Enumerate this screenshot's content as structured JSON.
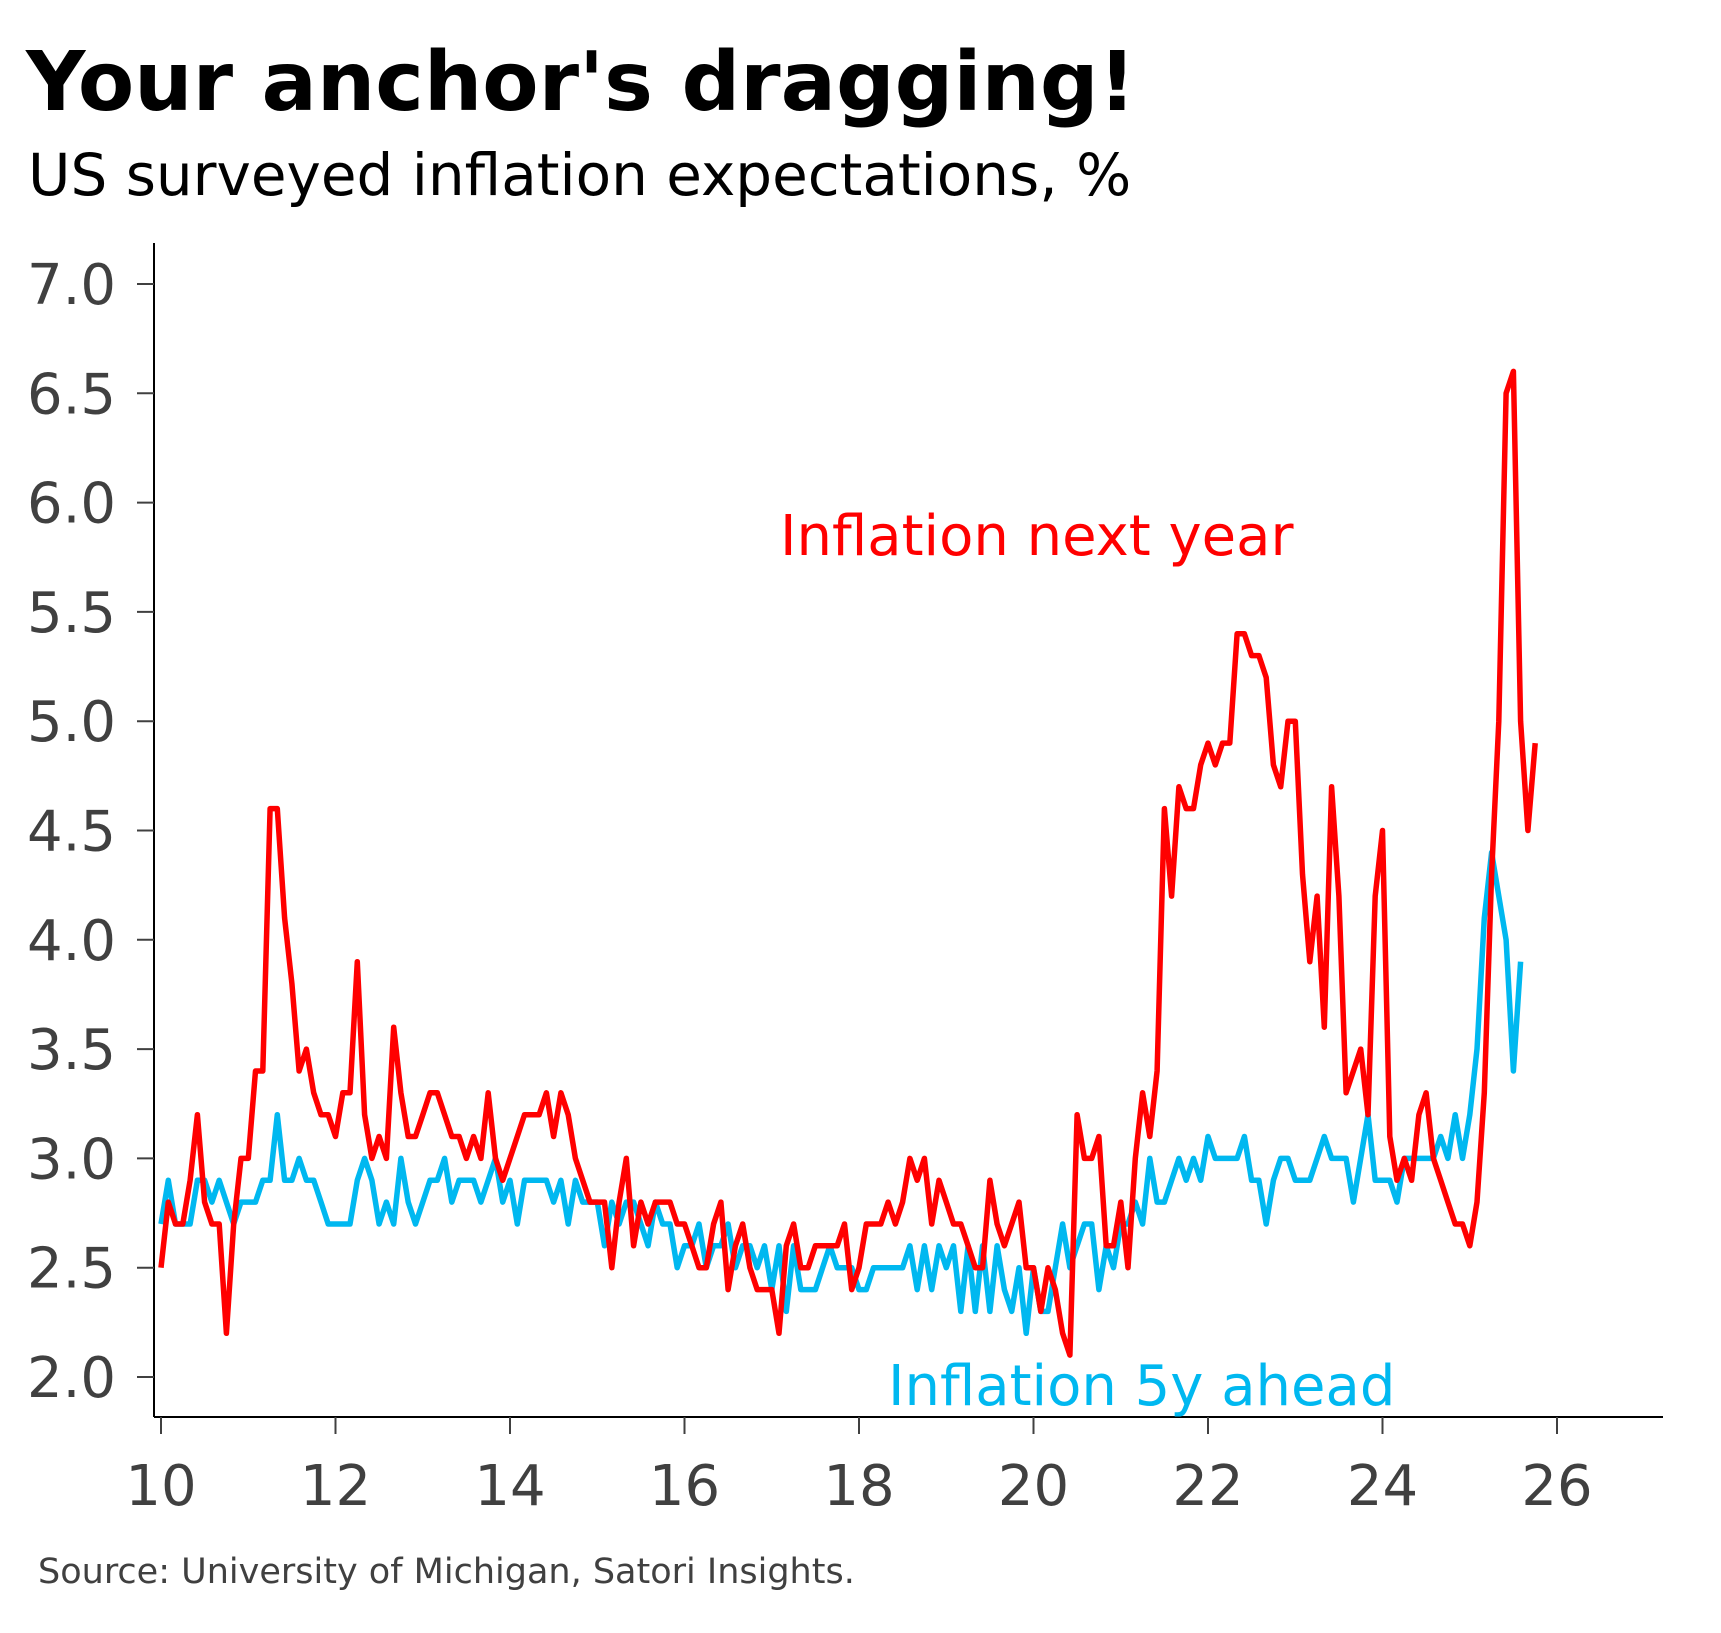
{
  "chart_data": {
    "type": "line",
    "title": "Your anchor's dragging!",
    "subtitle": "US surveyed inflation expectations, %",
    "source": "Source: University of Michigan, Satori Insights.",
    "xlabel": "",
    "ylabel": "",
    "x_start": 2010,
    "frequency": "monthly",
    "xlim": [
      2010,
      2027.2
    ],
    "ylim": [
      1.82,
      7.2
    ],
    "x_ticks": [
      10,
      12,
      14,
      16,
      18,
      20,
      22,
      24,
      26
    ],
    "x_tick_labels": [
      "10",
      "12",
      "14",
      "16",
      "18",
      "20",
      "22",
      "24",
      "26"
    ],
    "y_ticks": [
      2.0,
      2.5,
      3.0,
      3.5,
      4.0,
      4.5,
      5.0,
      5.5,
      6.0,
      6.5,
      7.0
    ],
    "y_tick_labels": [
      "2.0",
      "2.5",
      "3.0",
      "3.5",
      "4.0",
      "4.5",
      "5.0",
      "5.5",
      "6.0",
      "6.5",
      "7.0"
    ],
    "grid": false,
    "legend": "inline labels",
    "series": [
      {
        "name": "Inflation next year",
        "color": "#ff0000",
        "values": [
          2.5,
          2.8,
          2.7,
          2.7,
          2.9,
          3.2,
          2.8,
          2.7,
          2.7,
          2.2,
          2.7,
          3.0,
          3.0,
          3.4,
          3.4,
          4.6,
          4.6,
          4.1,
          3.8,
          3.4,
          3.5,
          3.3,
          3.2,
          3.2,
          3.1,
          3.3,
          3.3,
          3.9,
          3.2,
          3.0,
          3.1,
          3.0,
          3.6,
          3.3,
          3.1,
          3.1,
          3.2,
          3.3,
          3.3,
          3.2,
          3.1,
          3.1,
          3.0,
          3.1,
          3.0,
          3.3,
          3.0,
          2.9,
          3.0,
          3.1,
          3.2,
          3.2,
          3.2,
          3.3,
          3.1,
          3.3,
          3.2,
          3.0,
          2.9,
          2.8,
          2.8,
          2.8,
          2.5,
          2.8,
          3.0,
          2.6,
          2.8,
          2.7,
          2.8,
          2.8,
          2.8,
          2.7,
          2.7,
          2.6,
          2.5,
          2.5,
          2.7,
          2.8,
          2.4,
          2.6,
          2.7,
          2.5,
          2.4,
          2.4,
          2.4,
          2.2,
          2.6,
          2.7,
          2.5,
          2.5,
          2.6,
          2.6,
          2.6,
          2.6,
          2.7,
          2.4,
          2.5,
          2.7,
          2.7,
          2.7,
          2.8,
          2.7,
          2.8,
          3.0,
          2.9,
          3.0,
          2.7,
          2.9,
          2.8,
          2.7,
          2.7,
          2.6,
          2.5,
          2.5,
          2.9,
          2.7,
          2.6,
          2.7,
          2.8,
          2.5,
          2.5,
          2.3,
          2.5,
          2.4,
          2.2,
          2.1,
          3.2,
          3.0,
          3.0,
          3.1,
          2.6,
          2.6,
          2.8,
          2.5,
          3.0,
          3.3,
          3.1,
          3.4,
          4.6,
          4.2,
          4.7,
          4.6,
          4.6,
          4.8,
          4.9,
          4.8,
          4.9,
          4.9,
          5.4,
          5.4,
          5.3,
          5.3,
          5.2,
          4.8,
          4.7,
          5.0,
          5.0,
          4.3,
          3.9,
          4.2,
          3.6,
          4.7,
          4.2,
          3.3,
          3.4,
          3.5,
          3.2,
          4.2,
          4.5,
          3.1,
          2.9,
          3.0,
          2.9,
          3.2,
          3.3,
          3.0,
          2.9,
          2.8,
          2.7,
          2.7,
          2.6,
          2.8,
          3.3,
          4.3,
          5.0,
          6.5,
          6.6,
          5.0,
          4.5,
          4.9
        ]
      },
      {
        "name": "Inflation 5y ahead",
        "color": "#00b8f0",
        "values": [
          2.7,
          2.9,
          2.7,
          2.7,
          2.7,
          2.9,
          2.9,
          2.8,
          2.9,
          2.8,
          2.7,
          2.8,
          2.8,
          2.8,
          2.9,
          2.9,
          3.2,
          2.9,
          2.9,
          3.0,
          2.9,
          2.9,
          2.8,
          2.7,
          2.7,
          2.7,
          2.7,
          2.9,
          3.0,
          2.9,
          2.7,
          2.8,
          2.7,
          3.0,
          2.8,
          2.7,
          2.8,
          2.9,
          2.9,
          3.0,
          2.8,
          2.9,
          2.9,
          2.9,
          2.8,
          2.9,
          3.0,
          2.8,
          2.9,
          2.7,
          2.9,
          2.9,
          2.9,
          2.9,
          2.8,
          2.9,
          2.7,
          2.9,
          2.8,
          2.8,
          2.8,
          2.6,
          2.8,
          2.7,
          2.8,
          2.8,
          2.7,
          2.6,
          2.8,
          2.7,
          2.7,
          2.5,
          2.6,
          2.6,
          2.7,
          2.5,
          2.6,
          2.6,
          2.7,
          2.5,
          2.6,
          2.6,
          2.5,
          2.6,
          2.4,
          2.6,
          2.3,
          2.6,
          2.4,
          2.4,
          2.4,
          2.5,
          2.6,
          2.5,
          2.5,
          2.5,
          2.4,
          2.4,
          2.5,
          2.5,
          2.5,
          2.5,
          2.5,
          2.6,
          2.4,
          2.6,
          2.4,
          2.6,
          2.5,
          2.6,
          2.3,
          2.6,
          2.3,
          2.6,
          2.3,
          2.6,
          2.4,
          2.3,
          2.5,
          2.2,
          2.5,
          2.3,
          2.3,
          2.5,
          2.7,
          2.5,
          2.6,
          2.7,
          2.7,
          2.4,
          2.6,
          2.5,
          2.7,
          2.7,
          2.8,
          2.7,
          3.0,
          2.8,
          2.8,
          2.9,
          3.0,
          2.9,
          3.0,
          2.9,
          3.1,
          3.0,
          3.0,
          3.0,
          3.0,
          3.1,
          2.9,
          2.9,
          2.7,
          2.9,
          3.0,
          3.0,
          2.9,
          2.9,
          2.9,
          3.0,
          3.1,
          3.0,
          3.0,
          3.0,
          2.8,
          3.0,
          3.2,
          2.9,
          2.9,
          2.9,
          2.8,
          3.0,
          3.0,
          3.0,
          3.0,
          3.0,
          3.1,
          3.0,
          3.2,
          3.0,
          3.2,
          3.5,
          4.1,
          4.4,
          4.2,
          4.0,
          3.4,
          3.9
        ]
      }
    ],
    "annotations": [
      "Inflation next year",
      "Inflation 5y ahead"
    ]
  }
}
